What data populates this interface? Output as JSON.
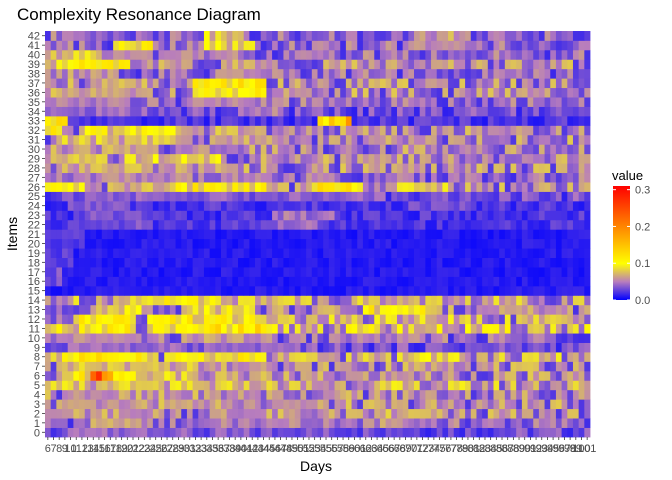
{
  "chart_data": {
    "type": "heatmap",
    "title": "Complexity Resonance Diagram",
    "xlabel": "Days",
    "ylabel": "Items",
    "x_start": 6,
    "x_end": 101,
    "y_start": 0,
    "y_end": 42,
    "legend": {
      "title": "value",
      "ticks": [
        0.0,
        0.1,
        0.2,
        0.3
      ],
      "tick_labels": [
        "0.0",
        "0.1",
        "0.2",
        "0.3"
      ],
      "min": 0.0,
      "max": 0.31,
      "position": "right"
    },
    "colors": {
      "low": "#0000ff",
      "mid_low": "#b87dbd",
      "mid": "#ffff00",
      "high": "#ff0000"
    },
    "grid": false,
    "row_profiles": [
      {
        "y": 0,
        "base": 0.03,
        "hot": [
          [
            10,
            30,
            0.05
          ],
          [
            40,
            70,
            0.03
          ]
        ]
      },
      {
        "y": 1,
        "base": 0.04,
        "hot": [
          [
            14,
            22,
            0.07
          ],
          [
            30,
            60,
            0.05
          ],
          [
            64,
            74,
            0.07
          ]
        ]
      },
      {
        "y": 2,
        "base": 0.05,
        "hot": [
          [
            8,
            26,
            0.06
          ],
          [
            34,
            56,
            0.05
          ],
          [
            66,
            76,
            0.08
          ]
        ]
      },
      {
        "y": 3,
        "base": 0.05,
        "hot": [
          [
            8,
            30,
            0.07
          ],
          [
            30,
            50,
            0.06
          ]
        ]
      },
      {
        "y": 4,
        "base": 0.05,
        "hot": [
          [
            10,
            28,
            0.06
          ],
          [
            30,
            60,
            0.05
          ],
          [
            70,
            80,
            0.05
          ]
        ]
      },
      {
        "y": 5,
        "base": 0.06,
        "hot": [
          [
            12,
            30,
            0.08
          ],
          [
            30,
            52,
            0.07
          ],
          [
            58,
            72,
            0.05
          ],
          [
            74,
            80,
            0.05
          ]
        ]
      },
      {
        "y": 6,
        "base": 0.05,
        "hot": [
          [
            9,
            12,
            0.12
          ],
          [
            14,
            17,
            0.3
          ],
          [
            17,
            22,
            0.12
          ],
          [
            22,
            32,
            0.1
          ],
          [
            32,
            46,
            0.07
          ],
          [
            64,
            70,
            0.06
          ]
        ]
      },
      {
        "y": 7,
        "base": 0.05,
        "hot": [
          [
            9,
            18,
            0.1
          ],
          [
            20,
            32,
            0.09
          ],
          [
            34,
            46,
            0.07
          ],
          [
            72,
            80,
            0.07
          ]
        ]
      },
      {
        "y": 8,
        "base": 0.06,
        "hot": [
          [
            9,
            22,
            0.13
          ],
          [
            28,
            44,
            0.12
          ],
          [
            70,
            78,
            0.1
          ]
        ]
      },
      {
        "y": 9,
        "base": 0.03,
        "hot": [
          [
            10,
            30,
            0.05
          ],
          [
            34,
            50,
            0.05
          ]
        ]
      },
      {
        "y": 10,
        "base": 0.04,
        "hot": [
          [
            9,
            24,
            0.06
          ],
          [
            30,
            44,
            0.07
          ],
          [
            56,
            72,
            0.05
          ]
        ]
      },
      {
        "y": 11,
        "base": 0.07,
        "hot": [
          [
            12,
            20,
            0.12
          ],
          [
            24,
            32,
            0.11
          ],
          [
            34,
            44,
            0.14
          ],
          [
            60,
            70,
            0.06
          ],
          [
            72,
            80,
            0.06
          ]
        ]
      },
      {
        "y": 12,
        "base": 0.06,
        "hot": [
          [
            12,
            20,
            0.12
          ],
          [
            24,
            44,
            0.12
          ],
          [
            50,
            60,
            0.06
          ],
          [
            70,
            78,
            0.07
          ]
        ]
      },
      {
        "y": 13,
        "base": 0.05,
        "hot": [
          [
            14,
            22,
            0.1
          ],
          [
            30,
            42,
            0.11
          ],
          [
            62,
            72,
            0.12
          ],
          [
            82,
            96,
            0.06
          ]
        ]
      },
      {
        "y": 14,
        "base": 0.06,
        "hot": [
          [
            18,
            26,
            0.1
          ],
          [
            26,
            36,
            0.12
          ],
          [
            40,
            50,
            0.09
          ],
          [
            60,
            80,
            0.07
          ]
        ]
      },
      {
        "y": 15,
        "base": 0.01,
        "hot": []
      },
      {
        "y": 16,
        "base": 0.01,
        "hot": [
          [
            6,
            8,
            0.04
          ]
        ]
      },
      {
        "y": 17,
        "base": 0.01,
        "hot": [
          [
            6,
            8,
            0.04
          ]
        ]
      },
      {
        "y": 18,
        "base": 0.01,
        "hot": [
          [
            6,
            10,
            0.03
          ]
        ]
      },
      {
        "y": 19,
        "base": 0.01,
        "hot": [
          [
            6,
            10,
            0.03
          ]
        ]
      },
      {
        "y": 20,
        "base": 0.01,
        "hot": [
          [
            6,
            12,
            0.03
          ]
        ]
      },
      {
        "y": 21,
        "base": 0.01,
        "hot": [
          [
            6,
            12,
            0.03
          ]
        ]
      },
      {
        "y": 22,
        "base": 0.02,
        "hot": [
          [
            10,
            24,
            0.04
          ],
          [
            44,
            54,
            0.05
          ]
        ]
      },
      {
        "y": 23,
        "base": 0.02,
        "hot": [
          [
            14,
            24,
            0.04
          ],
          [
            46,
            56,
            0.06
          ]
        ]
      },
      {
        "y": 24,
        "base": 0.02,
        "hot": [
          [
            10,
            20,
            0.04
          ],
          [
            70,
            80,
            0.04
          ]
        ]
      },
      {
        "y": 25,
        "base": 0.03,
        "hot": [
          [
            8,
            30,
            0.04
          ],
          [
            40,
            60,
            0.04
          ]
        ]
      },
      {
        "y": 26,
        "base": 0.05,
        "hot": [
          [
            6,
            12,
            0.12
          ],
          [
            18,
            24,
            0.09
          ],
          [
            28,
            44,
            0.12
          ],
          [
            53,
            61,
            0.14
          ],
          [
            68,
            76,
            0.09
          ]
        ]
      },
      {
        "y": 27,
        "base": 0.04,
        "hot": [
          [
            10,
            30,
            0.06
          ],
          [
            34,
            44,
            0.05
          ]
        ]
      },
      {
        "y": 28,
        "base": 0.05,
        "hot": [
          [
            8,
            24,
            0.08
          ],
          [
            26,
            40,
            0.07
          ]
        ]
      },
      {
        "y": 29,
        "base": 0.05,
        "hot": [
          [
            6,
            16,
            0.09
          ],
          [
            20,
            36,
            0.1
          ],
          [
            42,
            50,
            0.06
          ]
        ]
      },
      {
        "y": 30,
        "base": 0.05,
        "hot": [
          [
            8,
            24,
            0.07
          ],
          [
            30,
            44,
            0.06
          ],
          [
            74,
            84,
            0.06
          ]
        ]
      },
      {
        "y": 31,
        "base": 0.05,
        "hot": [
          [
            8,
            30,
            0.09
          ],
          [
            36,
            48,
            0.06
          ],
          [
            62,
            72,
            0.06
          ]
        ]
      },
      {
        "y": 32,
        "base": 0.05,
        "hot": [
          [
            6,
            8,
            0.12
          ],
          [
            12,
            30,
            0.11
          ],
          [
            36,
            44,
            0.08
          ]
        ]
      },
      {
        "y": 33,
        "base": 0.02,
        "hot": [
          [
            6,
            9,
            0.14
          ],
          [
            54,
            59,
            0.18
          ]
        ]
      },
      {
        "y": 34,
        "base": 0.03,
        "hot": [
          [
            10,
            20,
            0.05
          ],
          [
            40,
            46,
            0.06
          ]
        ]
      },
      {
        "y": 35,
        "base": 0.04,
        "hot": [
          [
            8,
            20,
            0.06
          ],
          [
            30,
            44,
            0.06
          ]
        ]
      },
      {
        "y": 36,
        "base": 0.05,
        "hot": [
          [
            8,
            22,
            0.07
          ],
          [
            32,
            44,
            0.12
          ],
          [
            46,
            52,
            0.06
          ]
        ]
      },
      {
        "y": 37,
        "base": 0.05,
        "hot": [
          [
            14,
            22,
            0.07
          ],
          [
            32,
            44,
            0.13
          ]
        ]
      },
      {
        "y": 38,
        "base": 0.04,
        "hot": [
          [
            8,
            18,
            0.07
          ],
          [
            36,
            46,
            0.06
          ],
          [
            84,
            90,
            0.06
          ]
        ]
      },
      {
        "y": 39,
        "base": 0.05,
        "hot": [
          [
            8,
            20,
            0.12
          ],
          [
            22,
            30,
            0.05
          ],
          [
            38,
            46,
            0.06
          ]
        ]
      },
      {
        "y": 40,
        "base": 0.04,
        "hot": [
          [
            6,
            14,
            0.09
          ],
          [
            14,
            24,
            0.07
          ],
          [
            26,
            38,
            0.06
          ]
        ]
      },
      {
        "y": 41,
        "base": 0.04,
        "hot": [
          [
            18,
            24,
            0.12
          ],
          [
            34,
            42,
            0.1
          ],
          [
            70,
            80,
            0.06
          ]
        ]
      },
      {
        "y": 42,
        "base": 0.04,
        "hot": [
          [
            34,
            40,
            0.1
          ],
          [
            72,
            80,
            0.08
          ]
        ]
      }
    ]
  }
}
